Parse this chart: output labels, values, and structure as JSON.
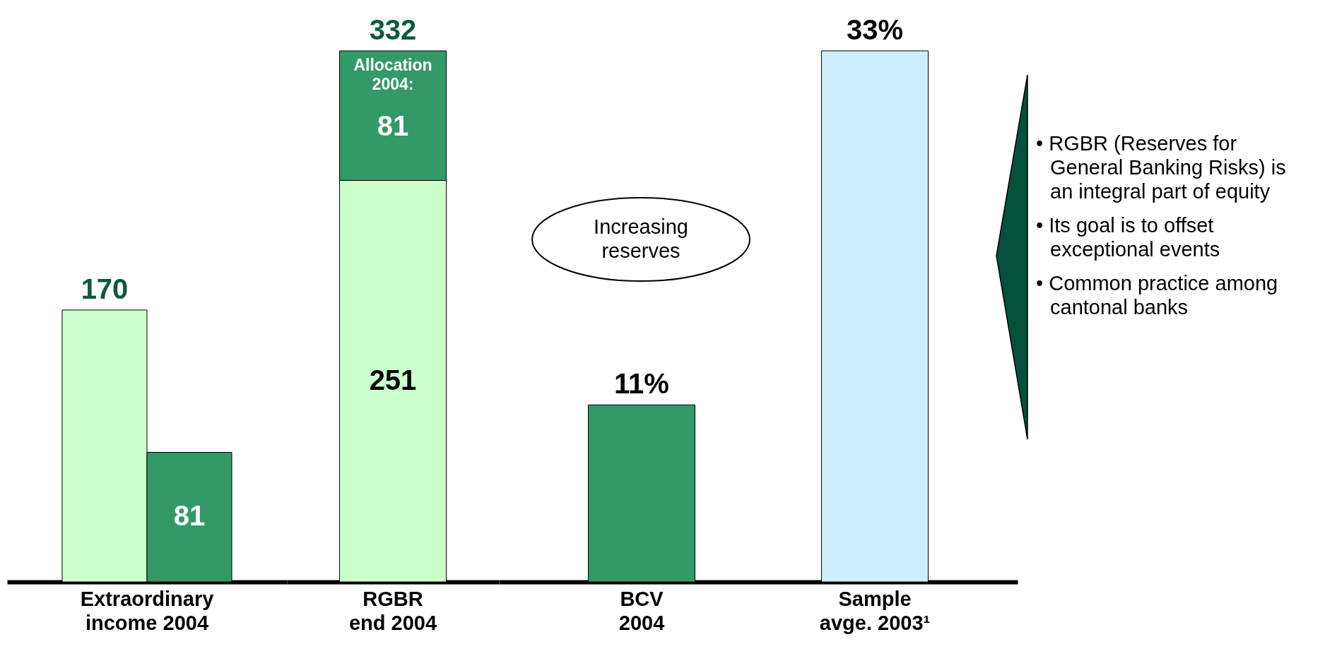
{
  "chart_data": [
    {
      "type": "bar",
      "categories": [
        "Extraordinary income 2004"
      ],
      "series": [
        {
          "color": "#ccffcc",
          "values": [
            170
          ]
        },
        {
          "color": "#339966",
          "values": [
            81
          ]
        }
      ],
      "data_labels": true
    },
    {
      "type": "bar",
      "categories": [
        "RGBR end 2004"
      ],
      "stacked": true,
      "series": [
        {
          "color": "#ccffcc",
          "values": [
            251
          ]
        },
        {
          "color": "#339966",
          "values": [
            81
          ]
        }
      ],
      "data_labels": true,
      "totals": [
        "332"
      ],
      "annotations": [
        "Allocation 2004:"
      ]
    },
    {
      "type": "bar",
      "categories": [
        "BCV 2004",
        "Sample avge. 2003¹"
      ],
      "values": [
        11,
        33
      ],
      "colors": [
        "#339966",
        "#cceeff"
      ],
      "value_labels": [
        "11%",
        "33%"
      ],
      "annotations": [
        "Increasing reserves",
        "• RGBR (Reserves for General Banking Risks) is an integral part of equity",
        "• Its goal is to offset exceptional events",
        "• Common practice among cantonal banks"
      ]
    }
  ]
}
